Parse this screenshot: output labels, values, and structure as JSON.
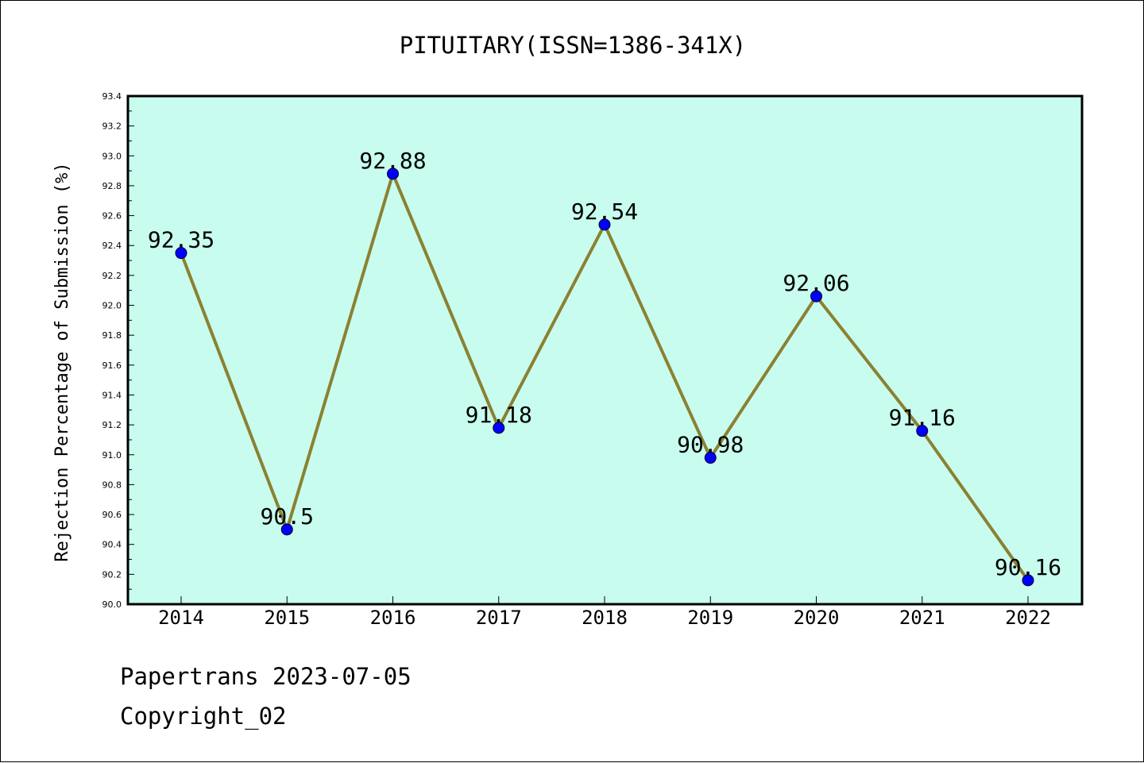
{
  "chart_data": {
    "type": "line",
    "title": "PITUITARY(ISSN=1386-341X)",
    "xlabel": "",
    "ylabel": "Rejection Percentage of Submission (%)",
    "categories": [
      "2014",
      "2015",
      "2016",
      "2017",
      "2018",
      "2019",
      "2020",
      "2021",
      "2022"
    ],
    "values": [
      92.35,
      90.5,
      92.88,
      91.18,
      92.54,
      90.98,
      92.06,
      91.16,
      90.16
    ],
    "data_labels": [
      "92.35",
      "90.5",
      "92.88",
      "91.18",
      "92.54",
      "90.98",
      "92.06",
      "91.16",
      "90.16"
    ],
    "ylim": [
      90.0,
      93.4
    ],
    "yticks": [
      "90.0",
      "90.2",
      "90.4",
      "90.6",
      "90.8",
      "91.0",
      "91.2",
      "91.4",
      "91.6",
      "91.8",
      "92.0",
      "92.2",
      "92.4",
      "92.6",
      "92.8",
      "93.0",
      "93.2",
      "93.4"
    ],
    "grid": false,
    "colors": {
      "plot_background": "#c8fcee",
      "line": "#8b8132",
      "marker": "#0000ff"
    }
  },
  "footer": {
    "credit": "Papertrans 2023-07-05",
    "copyright": "Copyright_02"
  }
}
